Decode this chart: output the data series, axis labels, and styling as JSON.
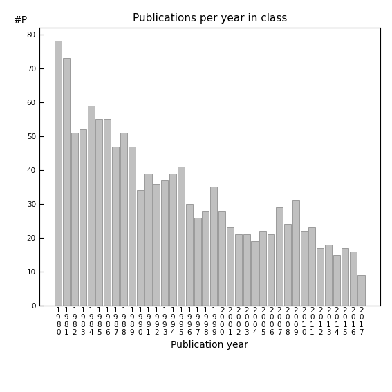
{
  "years": [
    "1980",
    "1981",
    "1982",
    "1983",
    "1984",
    "1985",
    "1986",
    "1987",
    "1988",
    "1989",
    "1990",
    "1991",
    "1992",
    "1993",
    "1994",
    "1995",
    "1996",
    "1997",
    "1998",
    "1999",
    "2000",
    "2001",
    "2002",
    "2003",
    "2004",
    "2005",
    "2006",
    "2007",
    "2008",
    "2009",
    "2010",
    "2011",
    "2012",
    "2013",
    "2014",
    "2015",
    "2016",
    "2017"
  ],
  "values": [
    78,
    73,
    51,
    52,
    59,
    55,
    55,
    47,
    51,
    47,
    34,
    39,
    36,
    37,
    39,
    41,
    30,
    26,
    28,
    35,
    28,
    23,
    21,
    21,
    19,
    22,
    21,
    29,
    24,
    31,
    22,
    23,
    17,
    18,
    15,
    17,
    16,
    9
  ],
  "bar_color": "#c0c0c0",
  "bar_edgecolor": "#909090",
  "title": "Publications per year in class",
  "xlabel": "Publication year",
  "ylabel": "#P",
  "ylim": [
    0,
    82
  ],
  "yticks": [
    0,
    10,
    20,
    30,
    40,
    50,
    60,
    70,
    80
  ],
  "bg_color": "#ffffff",
  "title_fontsize": 11,
  "label_fontsize": 10,
  "tick_fontsize": 7.5
}
